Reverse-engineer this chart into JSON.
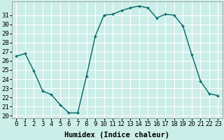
{
  "x": [
    0,
    1,
    2,
    3,
    4,
    5,
    6,
    7,
    8,
    9,
    10,
    11,
    12,
    13,
    14,
    15,
    16,
    17,
    18,
    19,
    20,
    21,
    22,
    23
  ],
  "y": [
    26.5,
    26.8,
    24.9,
    22.7,
    22.3,
    21.2,
    20.3,
    20.3,
    24.3,
    28.7,
    31.0,
    31.1,
    31.5,
    31.8,
    32.0,
    31.8,
    30.7,
    31.1,
    31.0,
    29.8,
    26.7,
    23.8,
    22.4,
    22.2
  ],
  "line_color": "#006868",
  "marker": "+",
  "marker_size": 3,
  "marker_lw": 1.0,
  "xlabel": "Humidex (Indice chaleur)",
  "ylabel_ticks": [
    20,
    21,
    22,
    23,
    24,
    25,
    26,
    27,
    28,
    29,
    30,
    31
  ],
  "xlim": [
    -0.5,
    23.5
  ],
  "ylim": [
    19.7,
    32.5
  ],
  "bg_color": "#cceee8",
  "grid_color": "#ffffff",
  "xlabel_fontsize": 7.5,
  "tick_fontsize": 6.5,
  "linewidth": 1.0
}
